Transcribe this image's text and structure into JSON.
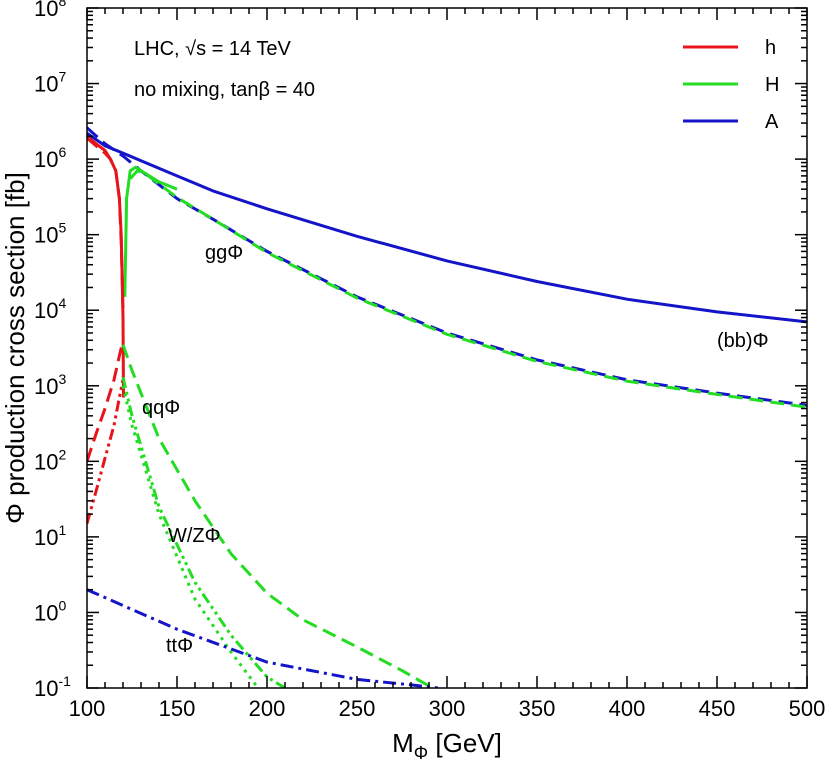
{
  "chart_data": {
    "type": "line",
    "xlabel": "M",
    "xlabel_sub": "Φ",
    "xlabel_unit": " [GeV]",
    "ylabel": "Φ production cross section [fb]",
    "xlim": [
      100,
      500
    ],
    "ylim": [
      0.1,
      100000000
    ],
    "yscale": "log",
    "grid": false,
    "legend_position": "top-right",
    "x_ticks": [
      "100",
      "150",
      "200",
      "250",
      "300",
      "350",
      "400",
      "450",
      "500"
    ],
    "y_tick_exponents": [
      "-1",
      "0",
      "1",
      "2",
      "3",
      "4",
      "5",
      "6",
      "7",
      "8"
    ],
    "y_tick_base": "10",
    "annotations": {
      "line1": "LHC, √s = 14 TeV",
      "line2": "no mixing, tanβ = 40",
      "gg": "ggΦ",
      "bb": "(bb)Φ",
      "qq": "qqΦ",
      "wz": "W/ZΦ",
      "tt": "ttΦ"
    },
    "colors": {
      "h": "#e8141b",
      "H": "#22dd22",
      "A": "#1414c8"
    },
    "legend": [
      {
        "name": "h",
        "color": "#e8141b"
      },
      {
        "name": "H",
        "color": "#22dd22"
      },
      {
        "name": "A",
        "color": "#1414c8"
      }
    ],
    "series": [
      {
        "id": "A-bb",
        "color": "#1414c8",
        "dash": "solid",
        "x": [
          100,
          110,
          120,
          130,
          150,
          170,
          200,
          250,
          300,
          350,
          400,
          450,
          500
        ],
        "y": [
          2200000,
          1500000,
          1200000,
          950000,
          600000,
          380000,
          220000,
          95000,
          45000,
          24000,
          14000,
          9500,
          7000
        ]
      },
      {
        "id": "A-gg",
        "color": "#1414c8",
        "dash": "dashed",
        "x": [
          100,
          110,
          120,
          130,
          150,
          170,
          200,
          250,
          300,
          350,
          400,
          450,
          500
        ],
        "y": [
          2600000,
          1600000,
          1100000,
          700000,
          300000,
          160000,
          60000,
          15000,
          5000,
          2200,
          1200,
          800,
          550
        ]
      },
      {
        "id": "H-bb",
        "color": "#22dd22",
        "dash": "solid",
        "x": [
          121,
          122,
          124,
          127,
          130,
          140,
          150
        ],
        "y": [
          15000,
          300000,
          700000,
          780000,
          700000,
          500000,
          400000
        ]
      },
      {
        "id": "H-gg",
        "color": "#22dd22",
        "dash": "dashed",
        "x": [
          124,
          128,
          132,
          150,
          170,
          200,
          250,
          300,
          350,
          400,
          450,
          500
        ],
        "y": [
          550000,
          700000,
          650000,
          310000,
          160000,
          58000,
          14500,
          4800,
          2100,
          1150,
          770,
          520
        ]
      },
      {
        "id": "h-bb",
        "color": "#e8141b",
        "dash": "solid",
        "x": [
          100,
          105,
          110,
          113,
          116,
          118,
          119,
          119.5,
          120,
          120.3
        ],
        "y": [
          2000000,
          1600000,
          1300000,
          1000000,
          700000,
          300000,
          100000,
          30000,
          8000,
          700
        ]
      },
      {
        "id": "h-gg",
        "color": "#e8141b",
        "dash": "dashed",
        "x": [
          100,
          105,
          110,
          113,
          116,
          118,
          119,
          120
        ],
        "y": [
          1900000,
          1500000,
          1200000,
          1000000,
          700000,
          300000,
          80000,
          10000
        ]
      },
      {
        "id": "h-qq",
        "color": "#e8141b",
        "dash": "dashed",
        "x": [
          100,
          105,
          110,
          115,
          118,
          120
        ],
        "y": [
          100,
          230,
          500,
          1200,
          2500,
          4000
        ]
      },
      {
        "id": "h-wz",
        "color": "#e8141b",
        "dash": "dashdotdot",
        "x": [
          100,
          105,
          110,
          115,
          118,
          120
        ],
        "y": [
          15,
          40,
          110,
          300,
          700,
          1200
        ]
      },
      {
        "id": "H-qq",
        "color": "#22dd22",
        "dash": "dashed",
        "x": [
          120,
          125,
          140,
          160,
          180,
          200,
          220,
          250,
          275,
          292
        ],
        "y": [
          3500,
          1600,
          200,
          30,
          6,
          1.8,
          0.8,
          0.35,
          0.17,
          0.1
        ]
      },
      {
        "id": "H-wz",
        "color": "#22dd22",
        "dash": "dashdotdot",
        "x": [
          120,
          125,
          140,
          160,
          180,
          200,
          210
        ],
        "y": [
          1300,
          400,
          25,
          2.5,
          0.5,
          0.14,
          0.1
        ]
      },
      {
        "id": "H-wz-dot",
        "color": "#22dd22",
        "dash": "dotted",
        "x": [
          120,
          125,
          140,
          160,
          180,
          195
        ],
        "y": [
          1000,
          300,
          20,
          1.5,
          0.3,
          0.1
        ]
      },
      {
        "id": "A-tt",
        "color": "#1414c8",
        "dash": "dashdot",
        "x": [
          100,
          150,
          200,
          250,
          280,
          295
        ],
        "y": [
          2,
          0.6,
          0.22,
          0.13,
          0.11,
          0.1
        ]
      }
    ]
  }
}
